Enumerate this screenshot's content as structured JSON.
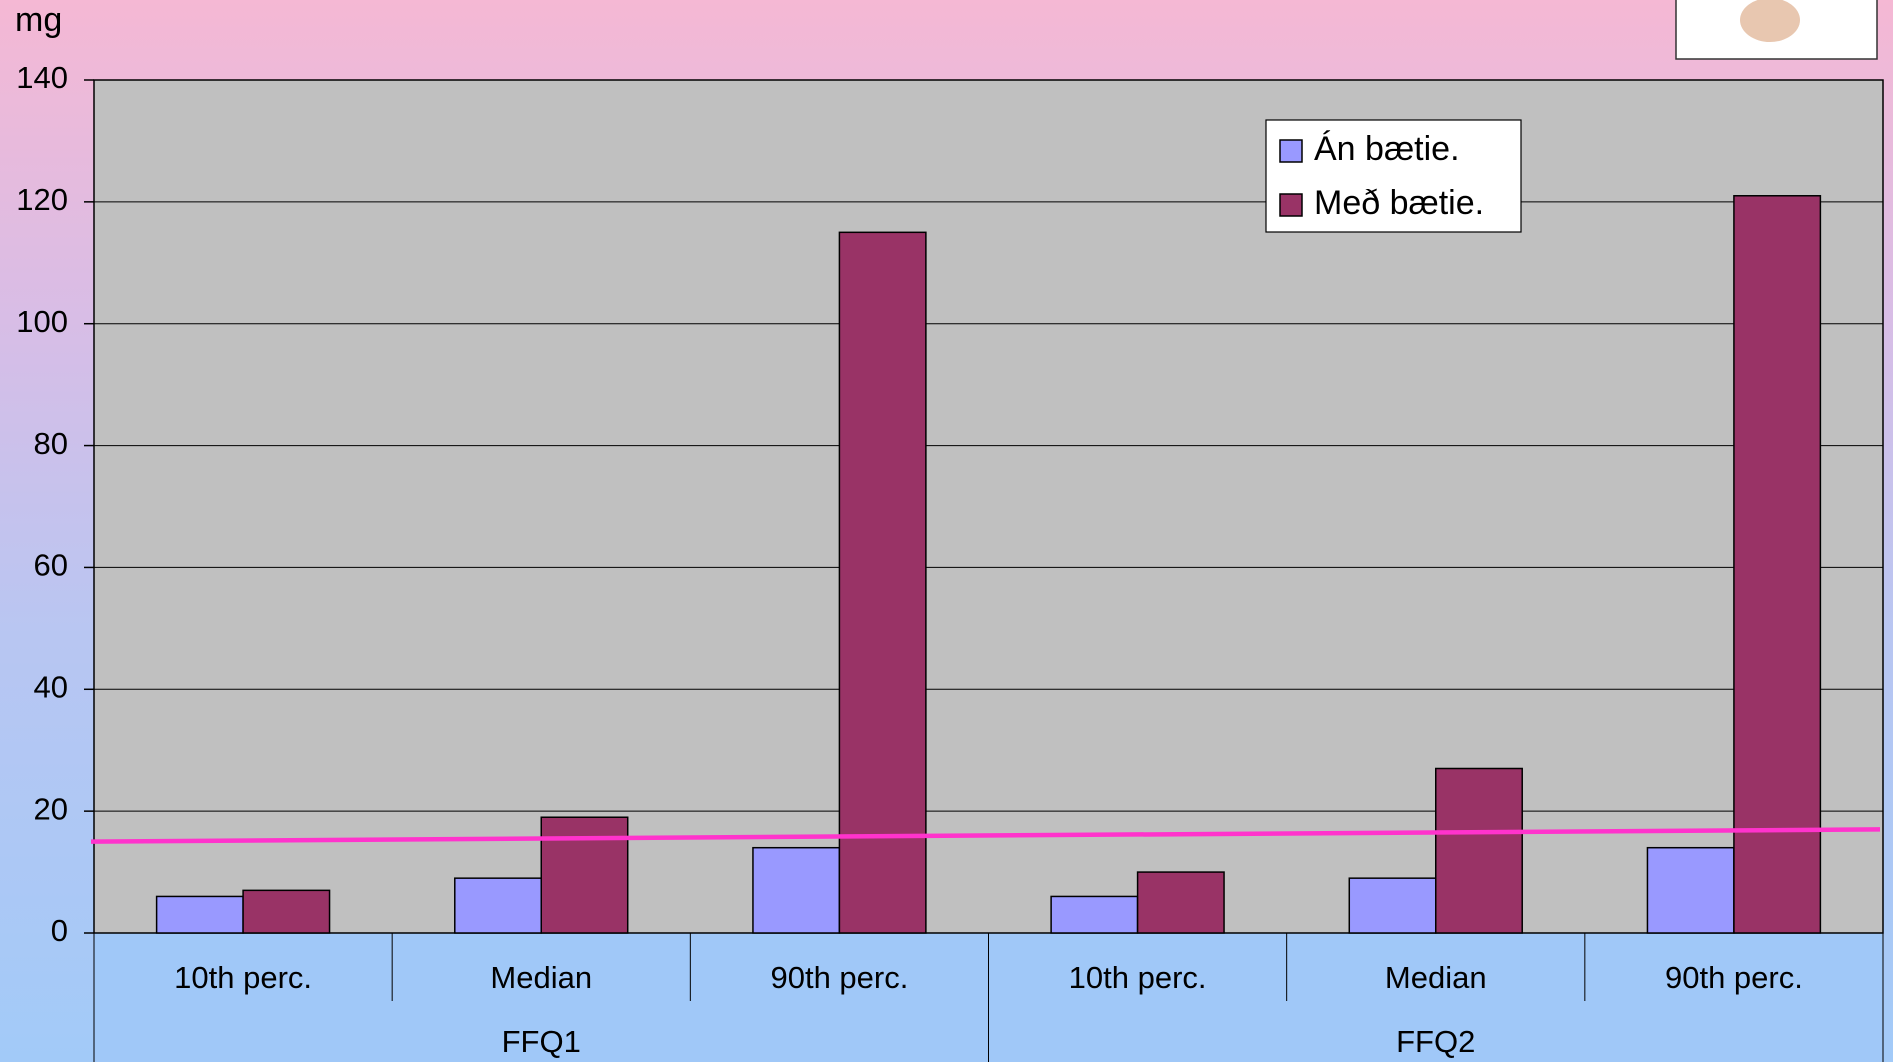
{
  "chart_data": {
    "type": "bar",
    "y_label": "mg",
    "categories": [
      "10th perc.",
      "Median",
      "90th perc.",
      "10th perc.",
      "Median",
      "90th perc."
    ],
    "groups": [
      {
        "name": "FFQ1",
        "size": 3
      },
      {
        "name": "FFQ2",
        "size": 3
      }
    ],
    "series": [
      {
        "name": "Án bætie.",
        "color": "#9999ff",
        "values": [
          6,
          9,
          14,
          6,
          9,
          14
        ]
      },
      {
        "name": "Með bætie.",
        "color": "#993366",
        "values": [
          7,
          19,
          115,
          10,
          27,
          121
        ]
      }
    ],
    "reference_line": {
      "color": "#ff33cc",
      "values": [
        15,
        17
      ]
    },
    "ylim": [
      0,
      140
    ],
    "yticks": [
      0,
      20,
      40,
      60,
      80,
      100,
      120,
      140
    ],
    "grid": true,
    "legend": "top-right"
  }
}
